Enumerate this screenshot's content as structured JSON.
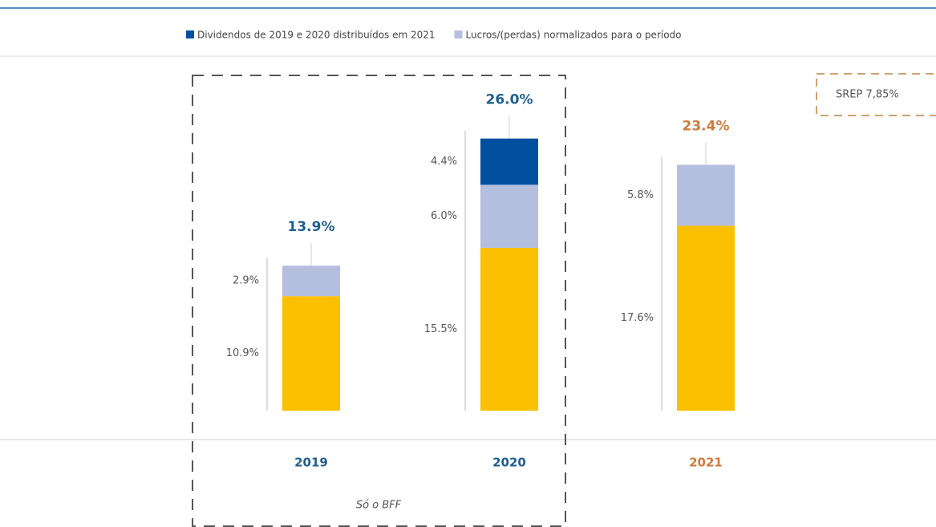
{
  "chart_data": {
    "type": "bar",
    "stacked": true,
    "categories": [
      "2019",
      "2020",
      "2021"
    ],
    "category_colors": [
      "#1f5f8f",
      "#1f5f8f",
      "#d07a3a"
    ],
    "series": [
      {
        "color": "#fbc000",
        "values": [
          10.9,
          15.5,
          17.6
        ],
        "value_labels": [
          "10.9%",
          "15.5%",
          "17.6%"
        ]
      },
      {
        "name": "Lucros/(perdas) normalizados para o período",
        "color": "#b4bedf",
        "values": [
          2.9,
          6.0,
          5.8
        ],
        "value_labels": [
          "2.9%",
          "6.0%",
          "5.8%"
        ]
      },
      {
        "name": "Dividendos de 2019 e 2020 distribuídos em 2021",
        "color": "#0050a0",
        "values": [
          null,
          4.4,
          null
        ],
        "value_labels": [
          null,
          "4.4%",
          null
        ]
      }
    ],
    "totals": [
      13.9,
      26.0,
      23.4
    ],
    "total_labels": [
      "13.9%",
      "26.0%",
      "23.4%"
    ],
    "annotations": [
      "SREP 7,85%",
      "Só o BFF"
    ]
  }
}
